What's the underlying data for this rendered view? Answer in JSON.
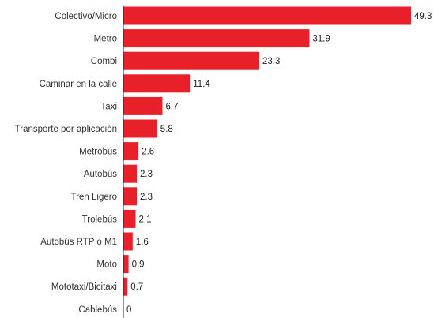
{
  "colors": {
    "bar": "#e8202a",
    "text": "#333333",
    "axis": "#222222"
  },
  "chart_data": {
    "type": "bar",
    "orientation": "horizontal",
    "title": "",
    "xlabel": "",
    "ylabel": "",
    "grid": false,
    "xlim": [
      0,
      49.3
    ],
    "categories": [
      "Colectivo/Micro",
      "Metro",
      "Combi",
      "Caminar en la calle",
      "Taxi",
      "Transporte por aplicación",
      "Metrobús",
      "Autobús",
      "Tren Ligero",
      "Trolebús",
      "Autobús RTP o M1",
      "Moto",
      "Mototaxi/Bicitaxi",
      "Cablebús"
    ],
    "values": [
      49.3,
      31.9,
      23.3,
      11.4,
      6.7,
      5.8,
      2.6,
      2.3,
      2.3,
      2.1,
      1.6,
      0.9,
      0.7,
      0
    ],
    "value_labels": [
      "49.3",
      "31.9",
      "23.3",
      "11.4",
      "6.7",
      "5.8",
      "2.6",
      "2.3",
      "2.3",
      "2.1",
      "1.6",
      "0.9",
      "0.7",
      "0"
    ]
  }
}
